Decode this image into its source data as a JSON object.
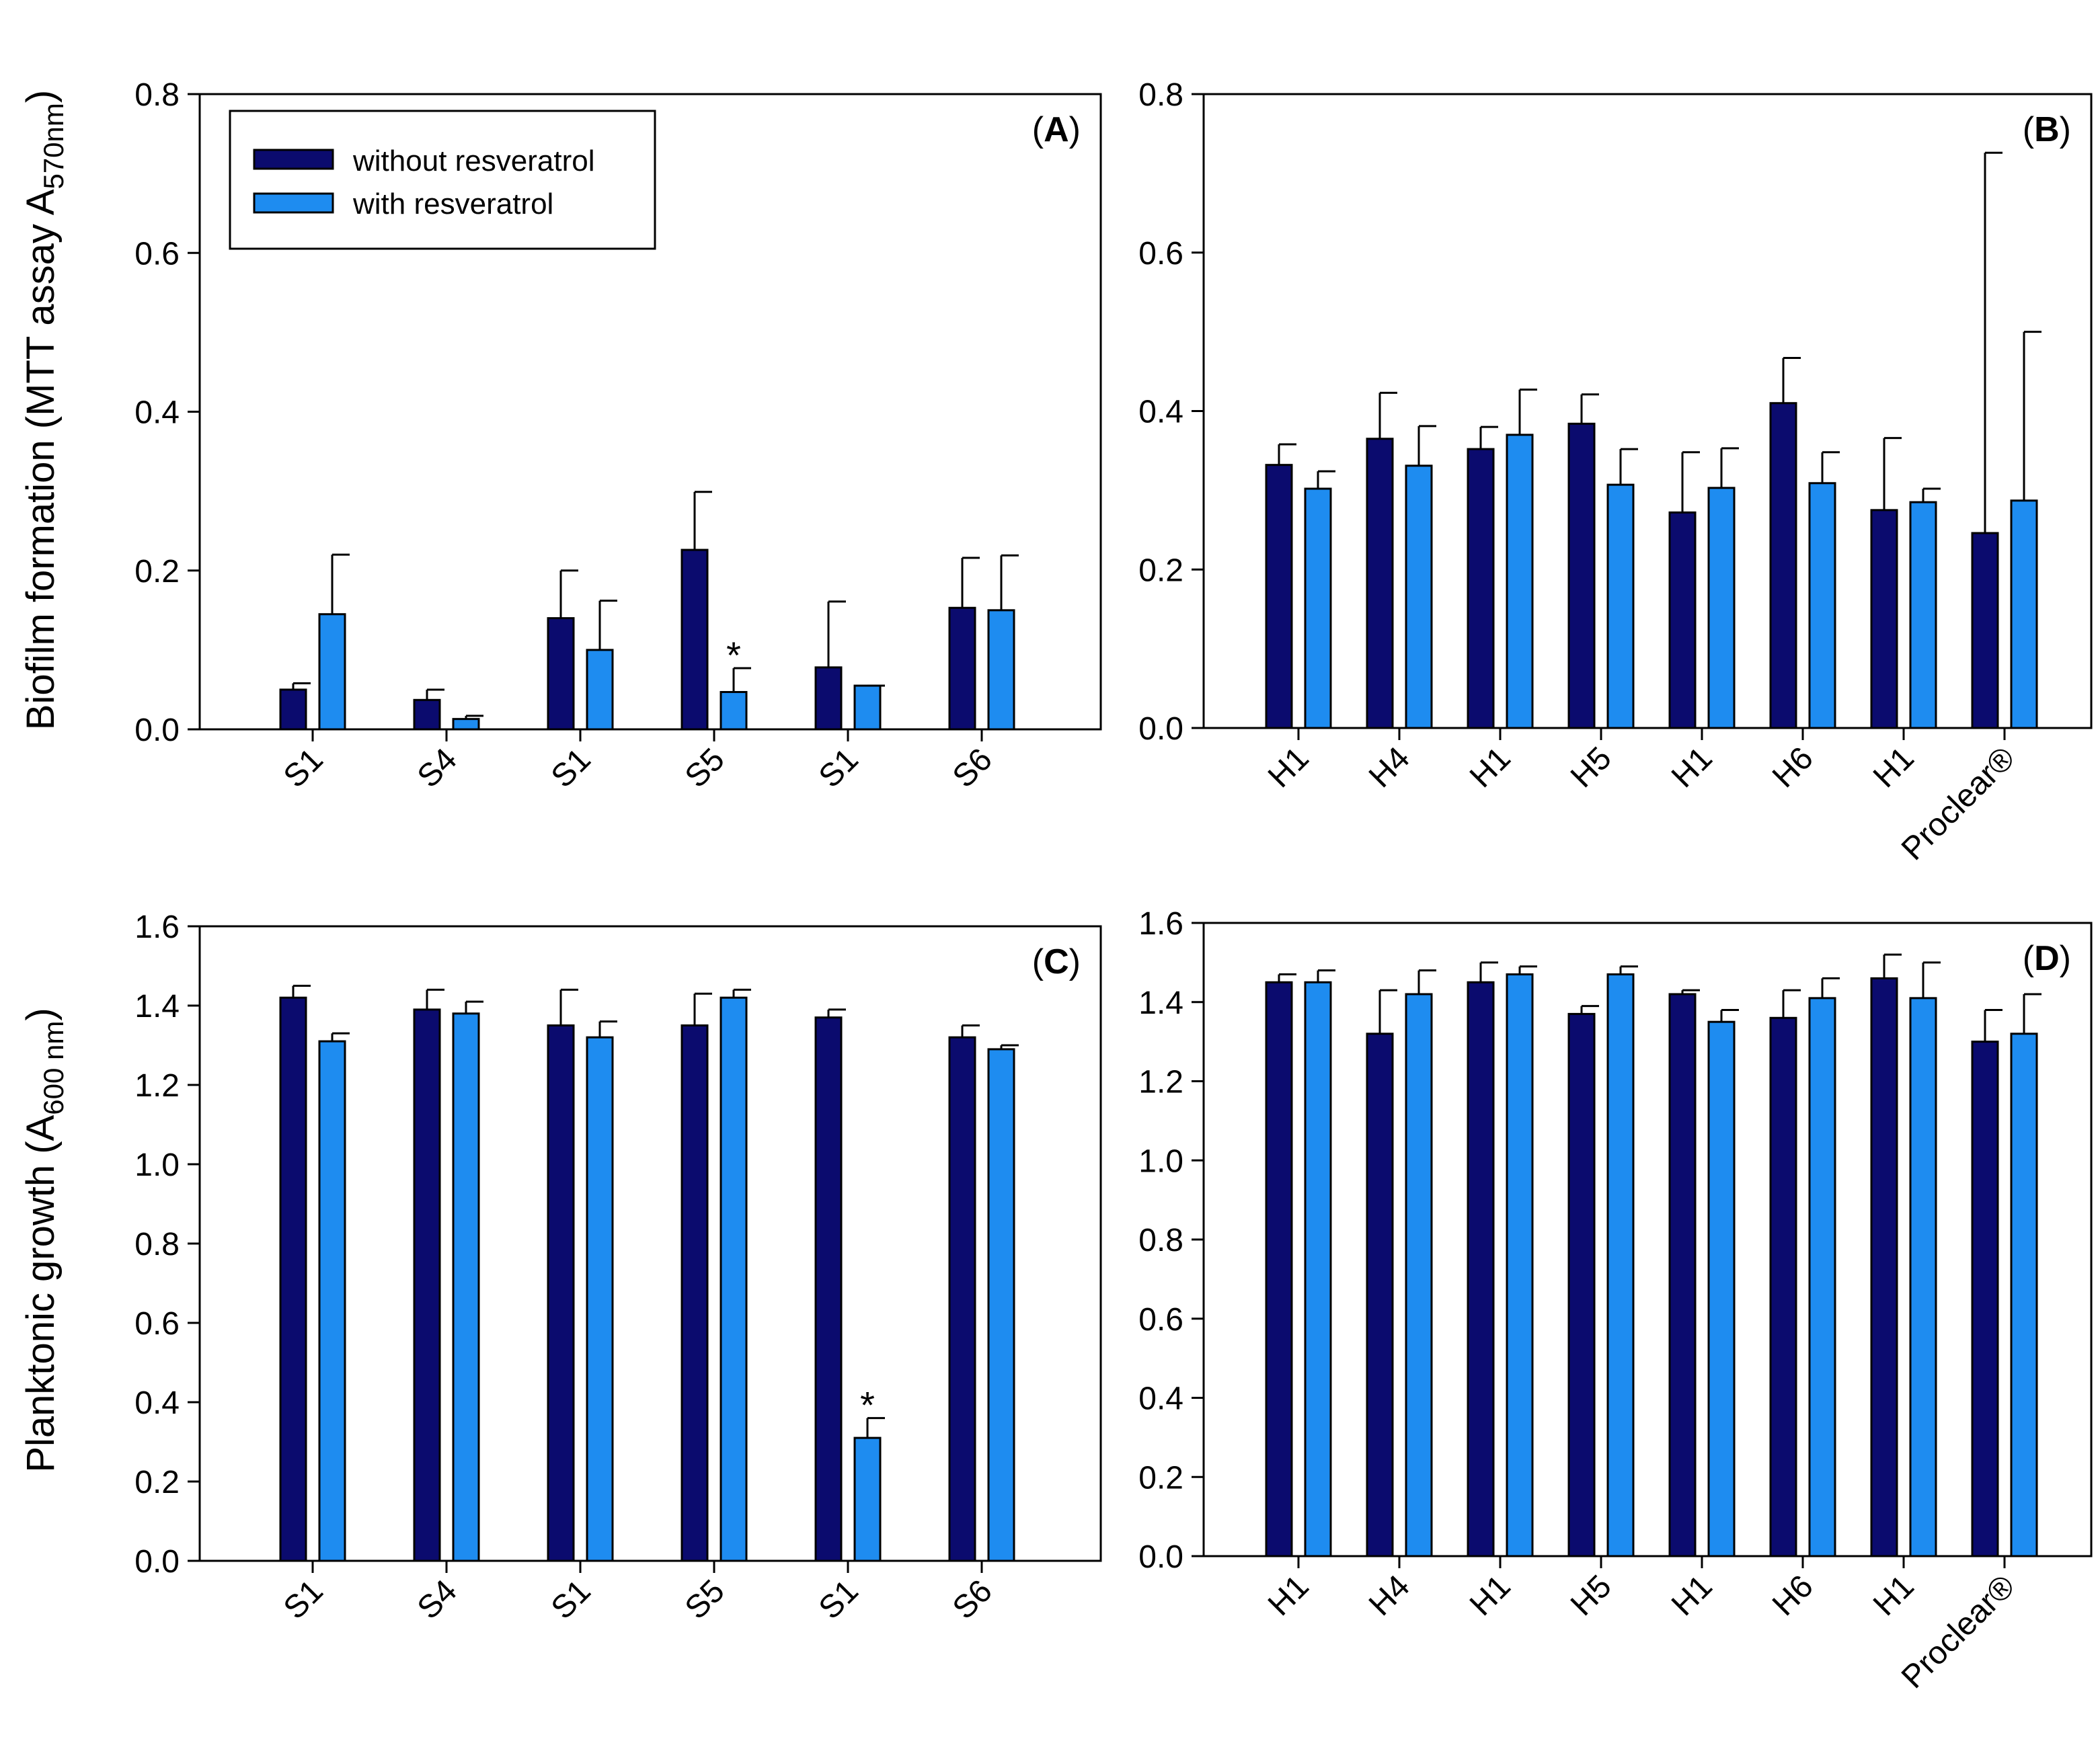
{
  "colors": {
    "without": "#0b0b6e",
    "with": "#1e8cf0",
    "axis": "#000000"
  },
  "legend": {
    "items": [
      {
        "label": "without resveratrol",
        "color": "#0b0b6e"
      },
      {
        "label": "with resveratrol",
        "color": "#1e8cf0"
      }
    ]
  },
  "ylabels": {
    "top": {
      "main": "Biofilm formation (MTT assay A",
      "sub": "570nm",
      "tail": ")"
    },
    "bottom": {
      "main": "Planktonic growth (A",
      "sub": "600 nm",
      "tail": ")"
    }
  },
  "chart_data": [
    {
      "id": "A",
      "type": "bar",
      "panel_label": "(A)",
      "categories": [
        "S1",
        "S4",
        "S1",
        "S5",
        "S1",
        "S6"
      ],
      "ylim": [
        0,
        0.8
      ],
      "yticks": [
        "0.0",
        "0.2",
        "0.4",
        "0.6",
        "0.8"
      ],
      "series": [
        {
          "name": "without resveratrol",
          "values": [
            0.05,
            0.037,
            0.14,
            0.226,
            0.078,
            0.153
          ],
          "errors": [
            0.008,
            0.013,
            0.06,
            0.073,
            0.083,
            0.063
          ]
        },
        {
          "name": "with resveratrol",
          "values": [
            0.145,
            0.013,
            0.1,
            0.047,
            0.055,
            0.15
          ],
          "errors": [
            0.075,
            0.004,
            0.062,
            0.03,
            0.0,
            0.069
          ]
        }
      ],
      "annotations": [
        {
          "text": "*",
          "category_index": 3,
          "series_index": 1
        }
      ]
    },
    {
      "id": "B",
      "type": "bar",
      "panel_label": "(B)",
      "categories": [
        "H1",
        "H4",
        "H1",
        "H5",
        "H1",
        "H6",
        "H1",
        "Proclear®"
      ],
      "ylim": [
        0,
        0.8
      ],
      "yticks": [
        "0.0",
        "0.2",
        "0.4",
        "0.6",
        "0.8"
      ],
      "series": [
        {
          "name": "without resveratrol",
          "values": [
            0.332,
            0.365,
            0.352,
            0.384,
            0.272,
            0.41,
            0.275,
            0.246
          ],
          "errors": [
            0.026,
            0.058,
            0.028,
            0.037,
            0.076,
            0.057,
            0.091,
            0.48
          ]
        },
        {
          "name": "with resveratrol",
          "values": [
            0.302,
            0.331,
            0.37,
            0.307,
            0.303,
            0.309,
            0.285,
            0.287
          ],
          "errors": [
            0.022,
            0.05,
            0.057,
            0.045,
            0.05,
            0.039,
            0.017,
            0.213
          ]
        }
      ],
      "annotations": []
    },
    {
      "id": "C",
      "type": "bar",
      "panel_label": "(C)",
      "categories": [
        "S1",
        "S4",
        "S1",
        "S5",
        "S1",
        "S6"
      ],
      "ylim": [
        0,
        1.6
      ],
      "yticks": [
        "0.0",
        "0.2",
        "0.4",
        "0.6",
        "0.8",
        "1.0",
        "1.2",
        "1.4",
        "1.6"
      ],
      "series": [
        {
          "name": "without resveratrol",
          "values": [
            1.42,
            1.39,
            1.35,
            1.35,
            1.37,
            1.32
          ],
          "errors": [
            0.03,
            0.05,
            0.09,
            0.08,
            0.02,
            0.03
          ]
        },
        {
          "name": "with resveratrol",
          "values": [
            1.31,
            1.38,
            1.32,
            1.42,
            0.31,
            1.29
          ],
          "errors": [
            0.02,
            0.03,
            0.04,
            0.02,
            0.05,
            0.01
          ]
        }
      ],
      "annotations": [
        {
          "text": "*",
          "category_index": 4,
          "series_index": 1
        }
      ]
    },
    {
      "id": "D",
      "type": "bar",
      "panel_label": "(D)",
      "categories": [
        "H1",
        "H4",
        "H1",
        "H5",
        "H1",
        "H6",
        "H1",
        "Proclear®"
      ],
      "ylim": [
        0,
        1.6
      ],
      "yticks": [
        "0.0",
        "0.2",
        "0.4",
        "0.6",
        "0.8",
        "1.0",
        "1.2",
        "1.4",
        "1.6"
      ],
      "series": [
        {
          "name": "without resveratrol",
          "values": [
            1.45,
            1.32,
            1.45,
            1.37,
            1.42,
            1.36,
            1.46,
            1.3
          ],
          "errors": [
            0.02,
            0.11,
            0.05,
            0.02,
            0.01,
            0.07,
            0.06,
            0.08
          ]
        },
        {
          "name": "with resveratrol",
          "values": [
            1.45,
            1.42,
            1.47,
            1.47,
            1.35,
            1.41,
            1.41,
            1.32
          ],
          "errors": [
            0.03,
            0.06,
            0.02,
            0.02,
            0.03,
            0.05,
            0.09,
            0.1
          ]
        }
      ],
      "annotations": []
    }
  ]
}
